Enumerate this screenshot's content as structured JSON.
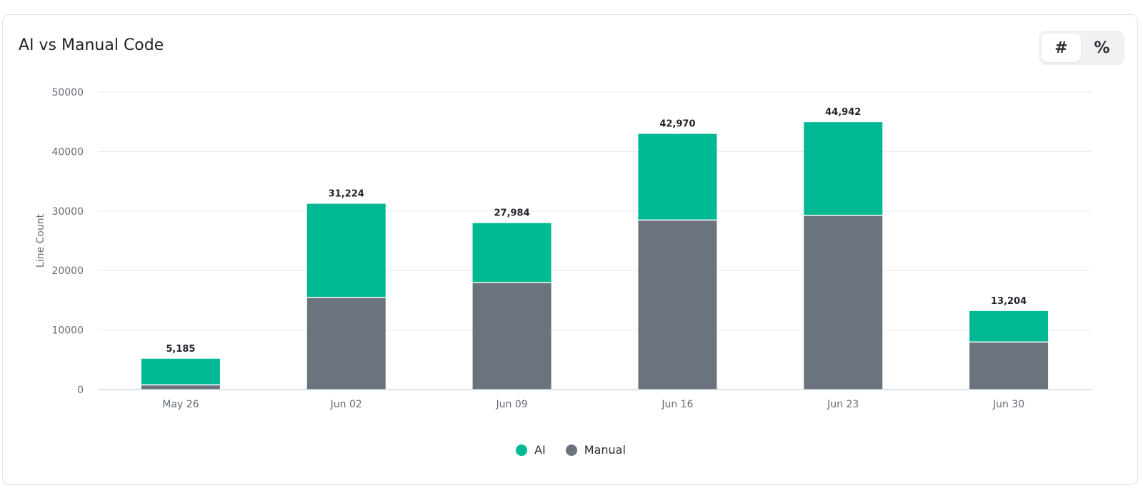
{
  "card": {
    "title": "AI vs Manual Code"
  },
  "toggle": {
    "count_label": "#",
    "percent_label": "%",
    "active": "count"
  },
  "colors": {
    "ai": "#00b894",
    "manual": "#6b747e",
    "grid": "#e6e9ec",
    "axis": "#cfd8e3",
    "tick_text": "#666d75",
    "total_text": "#1f2328"
  },
  "chart_data": {
    "type": "bar",
    "stacked": true,
    "title": "AI vs Manual Code",
    "xlabel": "",
    "ylabel": "Line Count",
    "ylim": [
      0,
      50000
    ],
    "yticks": [
      "0",
      "10000",
      "20000",
      "30000",
      "40000",
      "50000"
    ],
    "categories": [
      "May 26",
      "Jun 02",
      "Jun 09",
      "Jun 16",
      "Jun 23",
      "Jun 30"
    ],
    "series": [
      {
        "name": "Manual",
        "values": [
          700,
          15400,
          17900,
          28400,
          29200,
          7900
        ]
      },
      {
        "name": "AI",
        "values": [
          4485,
          15824,
          10084,
          14570,
          15742,
          5304
        ]
      }
    ],
    "totals": [
      "5,185",
      "31,224",
      "27,984",
      "42,970",
      "44,942",
      "13,204"
    ],
    "grid": true,
    "legend": "bottom"
  },
  "legend": [
    {
      "label": "AI",
      "key": "ai"
    },
    {
      "label": "Manual",
      "key": "manual"
    }
  ]
}
